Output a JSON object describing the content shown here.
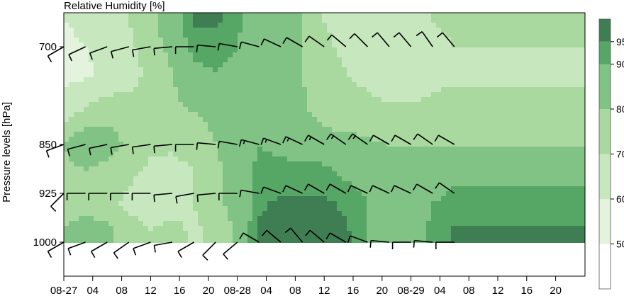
{
  "chart_data": {
    "type": "heatmap",
    "title": "Relative Humidity [%]",
    "xlabel": "",
    "ylabel": "Pressure levels [hPa]",
    "x_tick_labels": [
      "08-27",
      "04",
      "08",
      "12",
      "16",
      "20",
      "08-28",
      "04",
      "08",
      "12",
      "16",
      "20",
      "08-29",
      "04",
      "08",
      "12",
      "16",
      "20"
    ],
    "y_levels": [
      700,
      850,
      925,
      1000
    ],
    "y_tick_labels": [
      "700",
      "850",
      "925",
      "1000"
    ],
    "colorbar": {
      "ticks": [
        "50",
        "60",
        "70",
        "80",
        "90",
        "95"
      ],
      "bounds": [
        40,
        50,
        60,
        70,
        80,
        90,
        95,
        100
      ],
      "colors": [
        "#ffffff",
        "#e3f3dd",
        "#c7e8be",
        "#a9d99e",
        "#80c385",
        "#56a666",
        "#3f7e53"
      ]
    },
    "x_hours": [
      0,
      3,
      6,
      9,
      12,
      15,
      18,
      21,
      24,
      27,
      30,
      33,
      36,
      39,
      42,
      45,
      48,
      51,
      54
    ],
    "grid": [
      [
        60,
        62,
        66,
        70,
        78,
        86,
        96,
        96,
        92,
        84,
        80,
        80,
        70,
        68,
        66,
        64,
        66,
        70,
        72
      ],
      [
        56,
        58,
        62,
        66,
        72,
        80,
        88,
        90,
        88,
        82,
        80,
        80,
        72,
        70,
        68,
        64,
        62,
        66,
        68
      ],
      [
        66,
        72,
        76,
        74,
        74,
        78,
        80,
        82,
        82,
        84,
        84,
        82,
        76,
        74,
        72,
        72,
        72,
        74,
        74
      ],
      [
        80,
        90,
        86,
        78,
        72,
        72,
        76,
        80,
        84,
        90,
        88,
        86,
        84,
        84,
        82,
        80,
        80,
        80,
        80
      ],
      [
        76,
        80,
        76,
        72,
        68,
        66,
        70,
        78,
        86,
        92,
        92,
        92,
        92,
        88,
        86,
        84,
        82,
        86,
        88
      ],
      [
        70,
        74,
        72,
        68,
        66,
        64,
        70,
        78,
        84,
        94,
        96,
        96,
        96,
        94,
        90,
        86,
        84,
        90,
        92
      ],
      [
        82,
        88,
        84,
        74,
        70,
        74,
        68,
        72,
        82,
        96,
        98,
        98,
        98,
        96,
        90,
        86,
        86,
        92,
        96
      ]
    ],
    "grid_levels": [
      660,
      740,
      800,
      850,
      890,
      940,
      985
    ],
    "wind_barbs": {
      "700": [
        [
          240,
          10
        ],
        [
          245,
          10
        ],
        [
          250,
          10
        ],
        [
          255,
          10
        ],
        [
          260,
          10
        ],
        [
          265,
          10
        ],
        [
          270,
          10
        ],
        [
          275,
          10
        ],
        [
          280,
          10
        ],
        [
          285,
          10
        ],
        [
          295,
          10
        ],
        [
          300,
          10
        ],
        [
          305,
          10
        ],
        [
          310,
          10
        ],
        [
          315,
          10
        ],
        [
          320,
          10
        ],
        [
          320,
          10
        ],
        [
          325,
          10
        ],
        [
          320,
          10
        ]
      ],
      "850": [
        [
          250,
          10
        ],
        [
          255,
          10
        ],
        [
          258,
          10
        ],
        [
          260,
          10
        ],
        [
          262,
          10
        ],
        [
          265,
          10
        ],
        [
          270,
          10
        ],
        [
          275,
          10
        ],
        [
          280,
          10
        ],
        [
          285,
          15
        ],
        [
          290,
          15
        ],
        [
          295,
          15
        ],
        [
          300,
          15
        ],
        [
          305,
          15
        ],
        [
          305,
          15
        ],
        [
          300,
          10
        ],
        [
          300,
          10
        ],
        [
          305,
          10
        ],
        [
          300,
          10
        ]
      ],
      "925": [
        [
          225,
          10
        ],
        [
          270,
          10
        ],
        [
          270,
          10
        ],
        [
          270,
          10
        ],
        [
          270,
          10
        ],
        [
          265,
          10
        ],
        [
          260,
          10
        ],
        [
          265,
          10
        ],
        [
          270,
          10
        ],
        [
          280,
          10
        ],
        [
          290,
          10
        ],
        [
          295,
          10
        ],
        [
          300,
          10
        ],
        [
          300,
          10
        ],
        [
          295,
          10
        ],
        [
          295,
          10
        ],
        [
          295,
          10
        ],
        [
          300,
          10
        ],
        [
          305,
          10
        ]
      ],
      "1000": [
        [
          240,
          10
        ],
        [
          250,
          10
        ],
        [
          240,
          10
        ],
        [
          235,
          10
        ],
        [
          250,
          10
        ],
        [
          260,
          10
        ],
        [
          240,
          10
        ],
        [
          225,
          10
        ],
        [
          230,
          10
        ],
        [
          300,
          10
        ],
        [
          310,
          10
        ],
        [
          320,
          10
        ],
        [
          310,
          10
        ],
        [
          300,
          10
        ],
        [
          290,
          10
        ],
        [
          275,
          10
        ],
        [
          270,
          10
        ],
        [
          275,
          10
        ],
        [
          270,
          10
        ]
      ]
    }
  }
}
